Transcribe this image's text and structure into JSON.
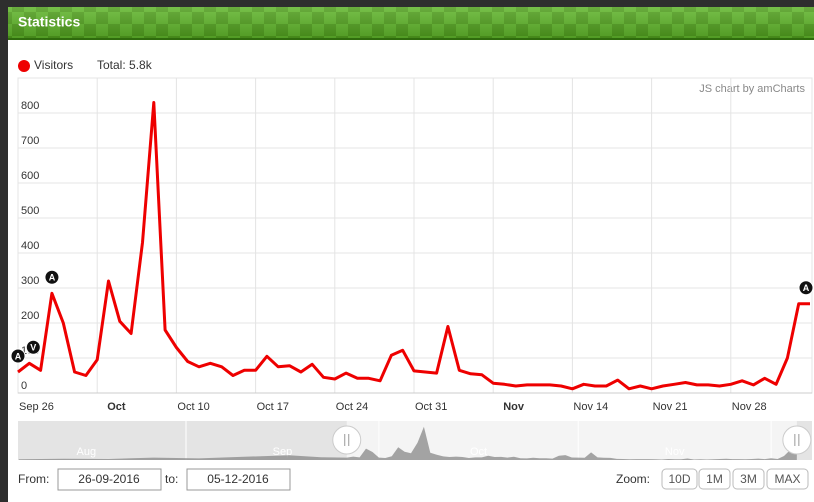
{
  "header": {
    "title": "Statistics"
  },
  "legend": {
    "total": "Total: 5.8k"
  },
  "credit": "JS chart by amCharts",
  "chart_data": {
    "type": "line",
    "x": [
      "2016-09-26",
      "2016-09-27",
      "2016-09-28",
      "2016-09-29",
      "2016-09-30",
      "2016-10-01",
      "2016-10-02",
      "2016-10-03",
      "2016-10-04",
      "2016-10-05",
      "2016-10-06",
      "2016-10-07",
      "2016-10-08",
      "2016-10-09",
      "2016-10-10",
      "2016-10-11",
      "2016-10-12",
      "2016-10-13",
      "2016-10-14",
      "2016-10-15",
      "2016-10-16",
      "2016-10-17",
      "2016-10-18",
      "2016-10-19",
      "2016-10-20",
      "2016-10-21",
      "2016-10-22",
      "2016-10-23",
      "2016-10-24",
      "2016-10-25",
      "2016-10-26",
      "2016-10-27",
      "2016-10-28",
      "2016-10-29",
      "2016-10-30",
      "2016-10-31",
      "2016-11-01",
      "2016-11-02",
      "2016-11-03",
      "2016-11-04",
      "2016-11-05",
      "2016-11-06",
      "2016-11-07",
      "2016-11-08",
      "2016-11-09",
      "2016-11-10",
      "2016-11-11",
      "2016-11-12",
      "2016-11-13",
      "2016-11-14",
      "2016-11-15",
      "2016-11-16",
      "2016-11-17",
      "2016-11-18",
      "2016-11-19",
      "2016-11-20",
      "2016-11-21",
      "2016-11-22",
      "2016-11-23",
      "2016-11-24",
      "2016-11-25",
      "2016-11-26",
      "2016-11-27",
      "2016-11-28",
      "2016-11-29",
      "2016-11-30",
      "2016-12-01",
      "2016-12-02",
      "2016-12-03",
      "2016-12-04",
      "2016-12-05"
    ],
    "series": [
      {
        "name": "Visitors",
        "color": "#ee0000",
        "values": [
          60,
          85,
          65,
          285,
          200,
          60,
          50,
          95,
          320,
          205,
          170,
          430,
          830,
          180,
          130,
          90,
          75,
          85,
          75,
          50,
          65,
          65,
          105,
          75,
          78,
          60,
          82,
          45,
          40,
          57,
          42,
          42,
          35,
          108,
          122,
          63,
          60,
          57,
          190,
          65,
          55,
          52,
          28,
          25,
          20,
          23,
          23,
          23,
          20,
          12,
          25,
          20,
          20,
          37,
          12,
          20,
          12,
          20,
          25,
          30,
          23,
          23,
          20,
          25,
          35,
          23,
          42,
          25,
          100,
          255,
          255
        ]
      }
    ],
    "ylim": [
      0,
      900
    ],
    "yticks": [
      0,
      100,
      200,
      300,
      400,
      500,
      600,
      700,
      800
    ],
    "xlim": [
      "2016-09-26",
      "2016-12-05"
    ],
    "xticks": [
      {
        "value": "2016-09-26",
        "label": "Sep 26"
      },
      {
        "value": "2016-10-03",
        "label": "Oct"
      },
      {
        "value": "2016-10-10",
        "label": "Oct 10"
      },
      {
        "value": "2016-10-17",
        "label": "Oct 17"
      },
      {
        "value": "2016-10-24",
        "label": "Oct 24"
      },
      {
        "value": "2016-10-31",
        "label": "Oct 31"
      },
      {
        "value": "2016-11-07",
        "label": "Nov"
      },
      {
        "value": "2016-11-14",
        "label": "Nov 14"
      },
      {
        "value": "2016-11-21",
        "label": "Nov 21"
      },
      {
        "value": "2016-11-28",
        "label": "Nov 28"
      }
    ],
    "grid": true,
    "events": [
      {
        "x": "2016-09-26",
        "label": "A"
      },
      {
        "x": "2016-09-27",
        "label": "V"
      },
      {
        "x": "2016-09-29",
        "label": "A"
      },
      {
        "x": "2016-12-05",
        "label": "A"
      }
    ],
    "scrollbar": {
      "x": [
        "2016-08-06",
        "2016-08-13",
        "2016-08-20",
        "2016-08-27",
        "2016-09-03",
        "2016-09-10",
        "2016-09-17",
        "2016-09-22"
      ],
      "values": [
        20,
        30,
        25,
        60,
        40,
        80,
        120,
        70
      ],
      "months": [
        {
          "value": "2016-08-01",
          "label": "Aug"
        },
        {
          "value": "2016-09-01",
          "label": "Sep"
        },
        {
          "value": "2016-10-01",
          "label": "Oct"
        },
        {
          "value": "2016-11-01",
          "label": "Nov"
        },
        {
          "value": "2016-12-01",
          "label": "Dec"
        }
      ]
    }
  },
  "controls": {
    "from_label": "From:",
    "from_value": "26-09-2016",
    "to_label": "to:",
    "to_value": "05-12-2016",
    "zoom_label": "Zoom:",
    "zoom_buttons": [
      "10D",
      "1M",
      "3M",
      "MAX"
    ]
  }
}
